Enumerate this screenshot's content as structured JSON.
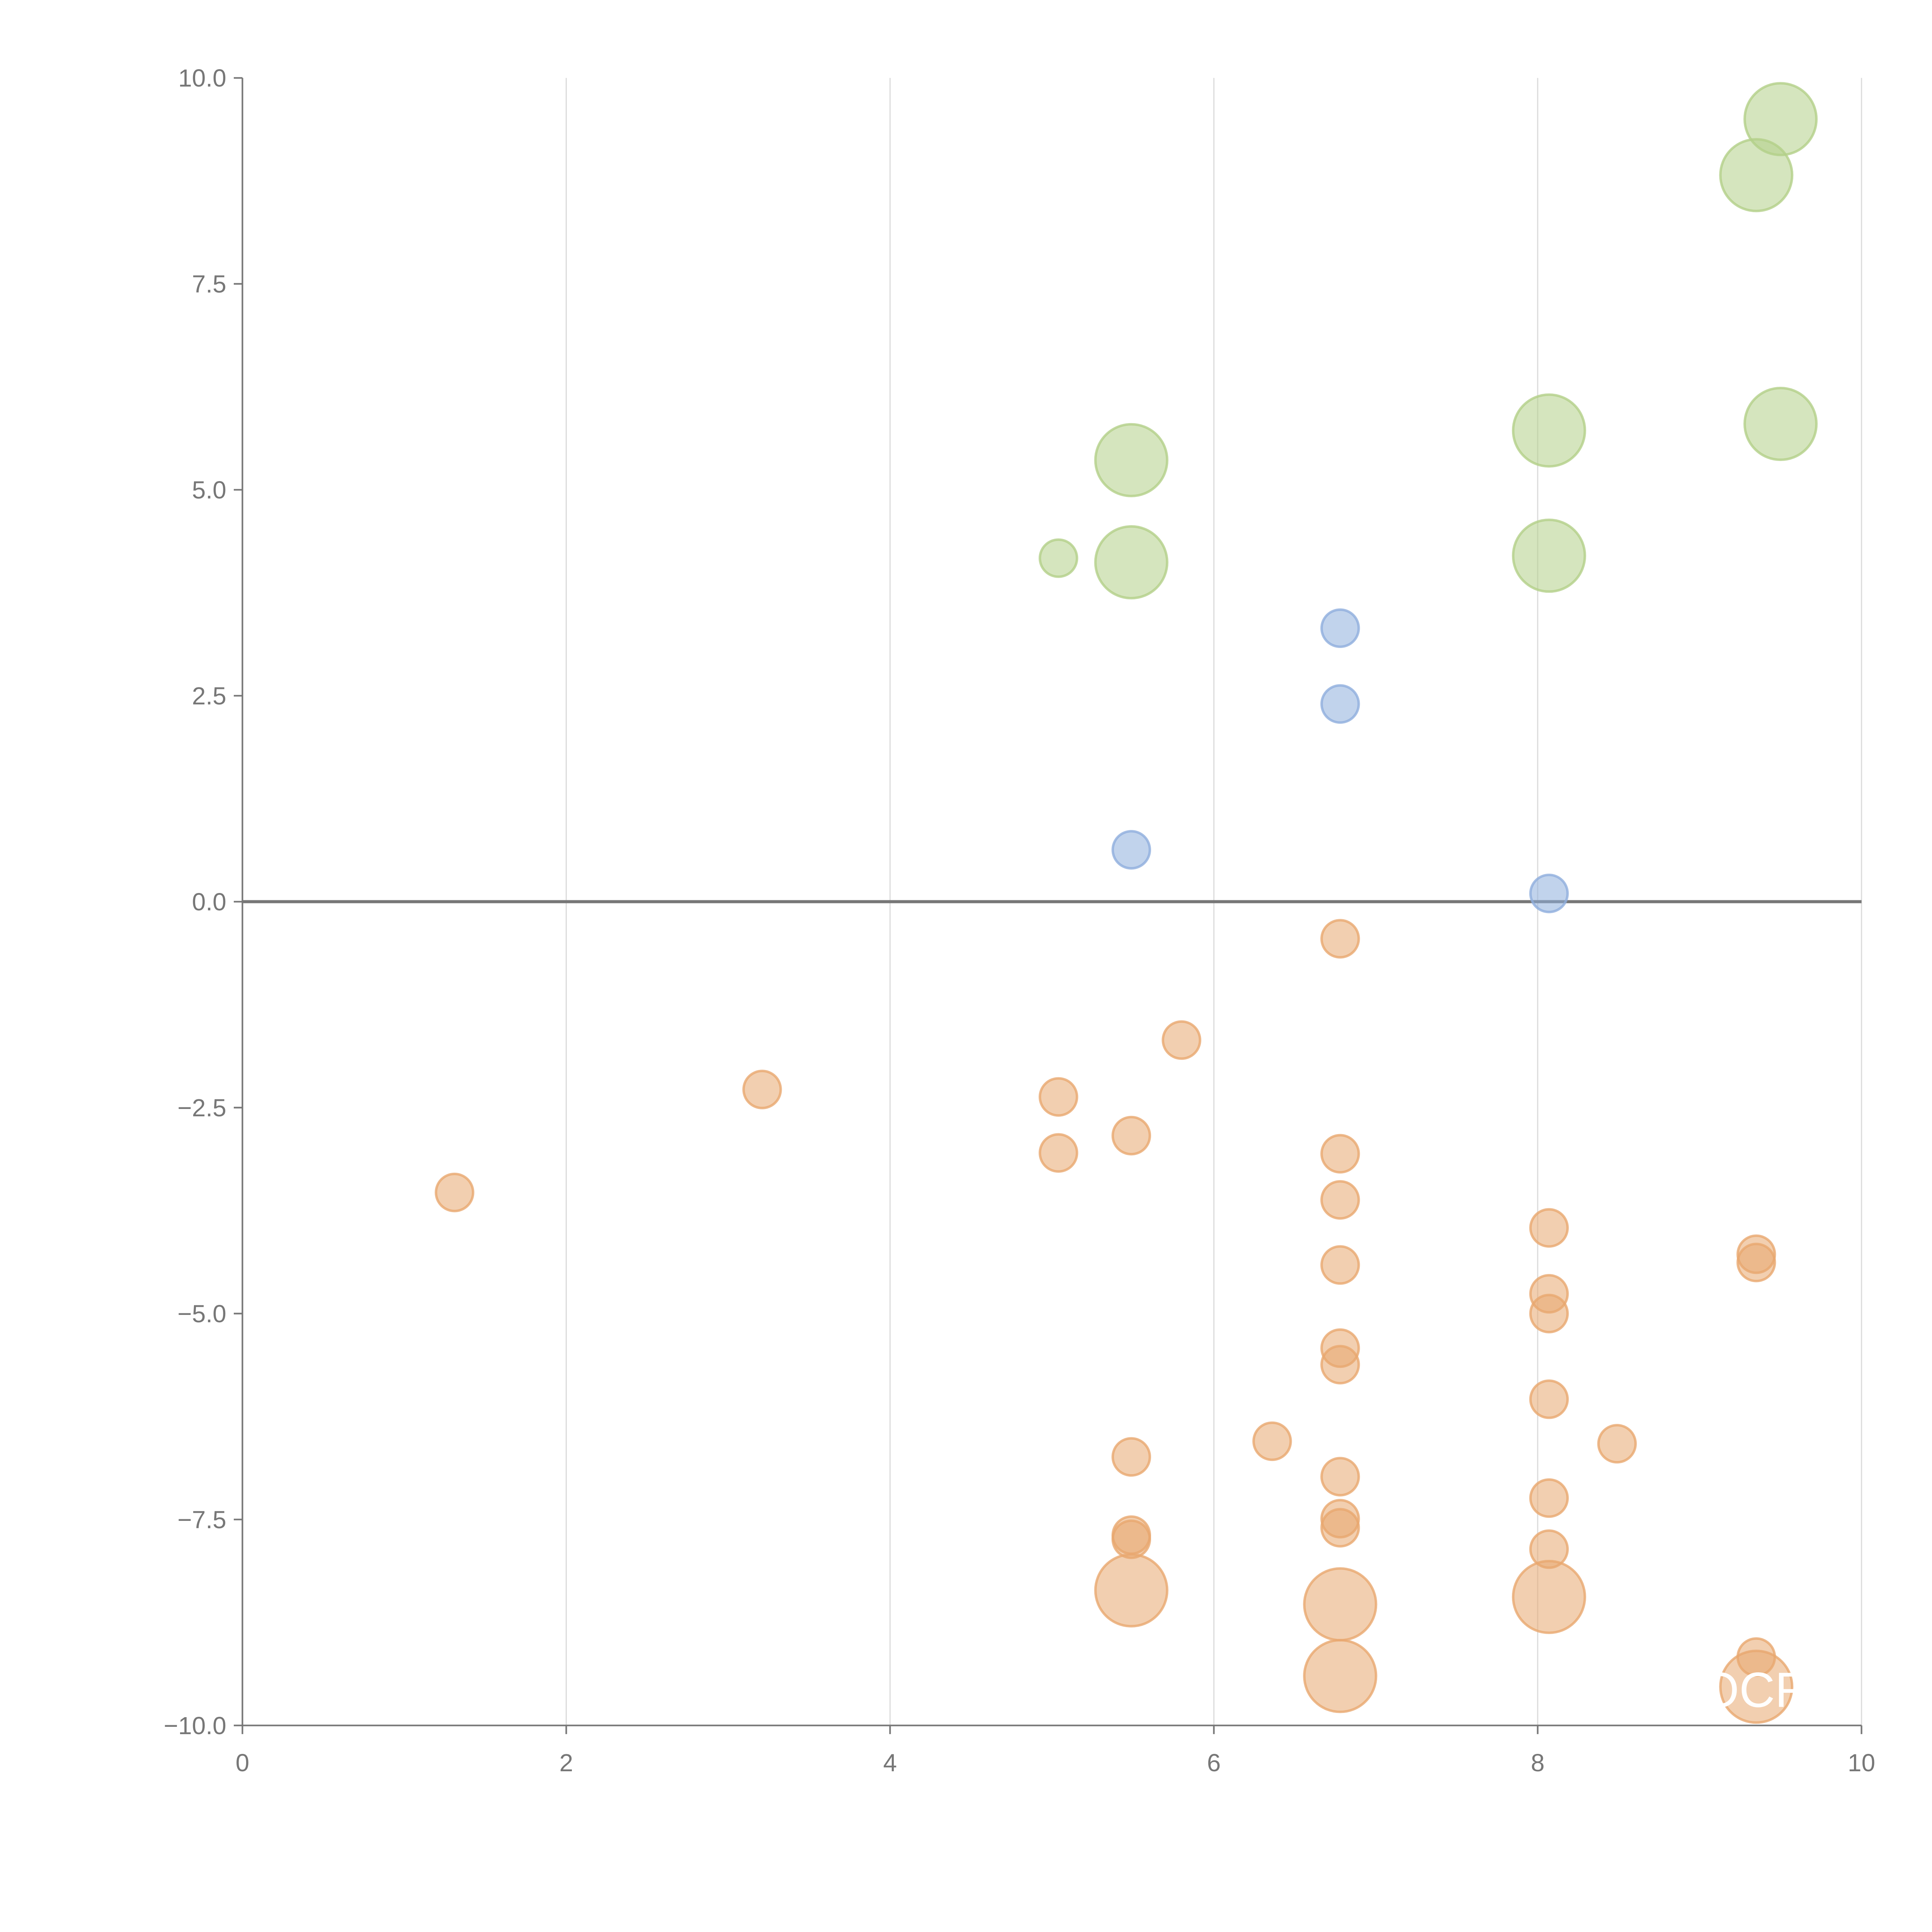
{
  "chart_data": {
    "type": "scatter",
    "title": "",
    "xlabel": "",
    "ylabel": "",
    "xlim": [
      0,
      10
    ],
    "ylim": [
      -10,
      10
    ],
    "grid": "vertical",
    "x_ticks": [
      "0",
      "2",
      "4",
      "6",
      "8",
      "10"
    ],
    "x_tick_values": [
      0,
      2,
      4,
      6,
      8,
      10
    ],
    "y_ticks": [
      "10.0",
      "7.5",
      "5.0",
      "2.5",
      "0.0",
      "−2.5",
      "−5.0",
      "−7.5",
      "−10.0"
    ],
    "y_tick_values": [
      10,
      7.5,
      5,
      2.5,
      0,
      -2.5,
      -5,
      -7.5,
      -10
    ],
    "annotation": "OCR",
    "series": [
      {
        "name": "green",
        "color": "#b3cf88",
        "points": [
          [
            9.5,
            9.5,
            2
          ],
          [
            9.35,
            8.82,
            2
          ],
          [
            9.5,
            5.8,
            2
          ],
          [
            8.07,
            5.72,
            2
          ],
          [
            5.49,
            5.36,
            2
          ],
          [
            5.04,
            4.17,
            1
          ],
          [
            5.49,
            4.12,
            2
          ],
          [
            8.07,
            4.2,
            2
          ]
        ]
      },
      {
        "name": "blue",
        "color": "#8eaedd",
        "points": [
          [
            6.78,
            3.32,
            1
          ],
          [
            6.78,
            2.4,
            1
          ],
          [
            5.49,
            0.63,
            1
          ],
          [
            8.07,
            0.1,
            1
          ]
        ]
      },
      {
        "name": "orange",
        "color": "#e8a86f",
        "points": [
          [
            6.78,
            -0.45,
            1
          ],
          [
            5.8,
            -1.68,
            1
          ],
          [
            3.21,
            -2.28,
            1
          ],
          [
            5.04,
            -2.37,
            1
          ],
          [
            5.49,
            -2.84,
            1
          ],
          [
            5.04,
            -3.05,
            1
          ],
          [
            6.78,
            -3.06,
            1
          ],
          [
            1.31,
            -3.53,
            1
          ],
          [
            6.78,
            -3.62,
            1
          ],
          [
            8.07,
            -3.96,
            1
          ],
          [
            9.35,
            -4.28,
            1
          ],
          [
            9.35,
            -4.38,
            1
          ],
          [
            6.78,
            -4.41,
            1
          ],
          [
            8.07,
            -4.76,
            1
          ],
          [
            8.07,
            -5.0,
            1
          ],
          [
            6.78,
            -5.42,
            1
          ],
          [
            6.78,
            -5.62,
            1
          ],
          [
            8.07,
            -6.04,
            1
          ],
          [
            6.36,
            -6.55,
            1
          ],
          [
            8.49,
            -6.58,
            1
          ],
          [
            5.49,
            -6.74,
            1
          ],
          [
            6.78,
            -6.98,
            1
          ],
          [
            8.07,
            -7.24,
            1
          ],
          [
            6.78,
            -7.49,
            1
          ],
          [
            6.78,
            -7.6,
            1
          ],
          [
            5.49,
            -7.69,
            1
          ],
          [
            5.49,
            -7.74,
            1
          ],
          [
            8.07,
            -7.86,
            1
          ],
          [
            5.49,
            -8.36,
            2
          ],
          [
            6.78,
            -8.53,
            2
          ],
          [
            8.07,
            -8.44,
            2
          ],
          [
            6.78,
            -9.4,
            2
          ],
          [
            9.35,
            -9.53,
            2
          ],
          [
            9.35,
            -9.17,
            1
          ]
        ]
      }
    ]
  }
}
